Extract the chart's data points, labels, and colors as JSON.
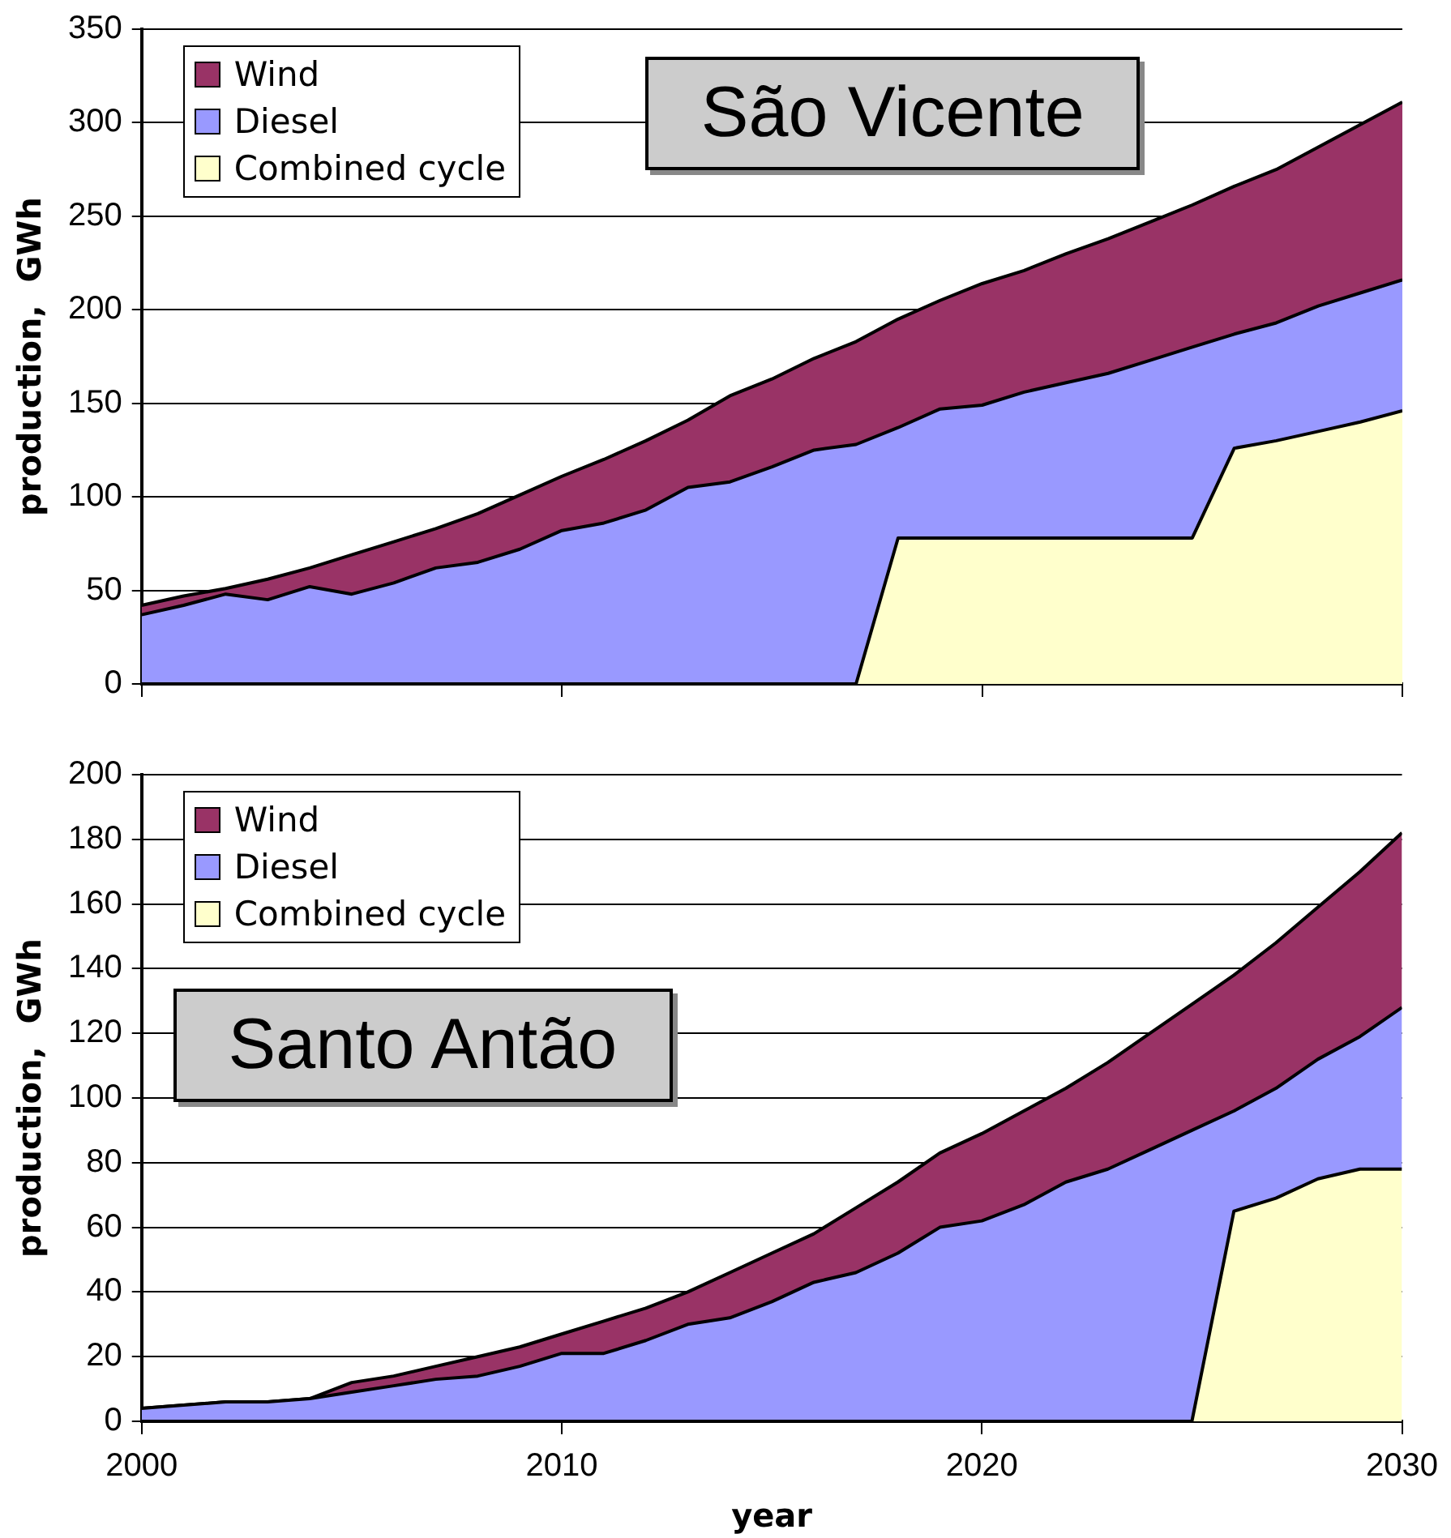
{
  "chart_data": [
    {
      "type": "area",
      "stacked": true,
      "ylabel": "production,  GWh",
      "annotations": [
        "São Vicente"
      ],
      "x": [
        2000,
        2001,
        2002,
        2003,
        2004,
        2005,
        2006,
        2007,
        2008,
        2009,
        2010,
        2011,
        2012,
        2013,
        2014,
        2015,
        2016,
        2017,
        2018,
        2019,
        2020,
        2021,
        2022,
        2023,
        2024,
        2025,
        2026,
        2027,
        2028,
        2029,
        2030
      ],
      "series": [
        {
          "name": "Combined cycle",
          "color": "#ffffcc",
          "values": [
            0,
            0,
            0,
            0,
            0,
            0,
            0,
            0,
            0,
            0,
            0,
            0,
            0,
            0,
            0,
            0,
            0,
            0,
            78,
            78,
            78,
            78,
            78,
            78,
            78,
            78,
            126,
            130,
            135,
            140,
            146
          ]
        },
        {
          "name": "Diesel",
          "color": "#9999ff",
          "values": [
            37,
            42,
            48,
            45,
            52,
            48,
            54,
            62,
            65,
            72,
            82,
            86,
            93,
            105,
            108,
            116,
            125,
            128,
            59,
            69,
            71,
            78,
            83,
            88,
            95,
            102,
            61,
            63,
            67,
            69,
            70
          ]
        },
        {
          "name": "Wind",
          "color": "#993366",
          "values": [
            5,
            5,
            3,
            11,
            10,
            21,
            22,
            21,
            26,
            29,
            29,
            34,
            37,
            36,
            46,
            47,
            49,
            55,
            58,
            58,
            65,
            65,
            69,
            72,
            74,
            76,
            79,
            82,
            85,
            90,
            95
          ]
        }
      ],
      "xlim": [
        2000,
        2030
      ],
      "xticks": [
        2000,
        2010,
        2020,
        2030
      ],
      "ylim": [
        0,
        350
      ],
      "yticks": [
        0,
        50,
        100,
        150,
        200,
        250,
        300,
        350
      ],
      "tick_labels": "y",
      "grid": "y",
      "legend": "top left",
      "marker": "none"
    },
    {
      "type": "area",
      "stacked": true,
      "xlabel": "year",
      "ylabel": "production,  GWh",
      "annotations": [
        "Santo Antão"
      ],
      "x": [
        2000,
        2001,
        2002,
        2003,
        2004,
        2005,
        2006,
        2007,
        2008,
        2009,
        2010,
        2011,
        2012,
        2013,
        2014,
        2015,
        2016,
        2017,
        2018,
        2019,
        2020,
        2021,
        2022,
        2023,
        2024,
        2025,
        2026,
        2027,
        2028,
        2029,
        2030
      ],
      "series": [
        {
          "name": "Combined cycle",
          "color": "#ffffcc",
          "values": [
            0,
            0,
            0,
            0,
            0,
            0,
            0,
            0,
            0,
            0,
            0,
            0,
            0,
            0,
            0,
            0,
            0,
            0,
            0,
            0,
            0,
            0,
            0,
            0,
            0,
            0,
            65,
            69,
            75,
            78,
            78
          ]
        },
        {
          "name": "Diesel",
          "color": "#9999ff",
          "values": [
            4,
            5,
            6,
            6,
            7,
            9,
            11,
            13,
            14,
            17,
            21,
            21,
            25,
            30,
            32,
            37,
            43,
            46,
            52,
            60,
            62,
            67,
            74,
            78,
            84,
            90,
            31,
            34,
            37,
            41,
            50
          ]
        },
        {
          "name": "Wind",
          "color": "#993366",
          "values": [
            0,
            0,
            0,
            0,
            0,
            3,
            3,
            4,
            6,
            6,
            6,
            10,
            10,
            10,
            14,
            15,
            15,
            20,
            22,
            23,
            27,
            29,
            29,
            33,
            36,
            39,
            42,
            45,
            47,
            51,
            54
          ]
        }
      ],
      "xlim": [
        2000,
        2030
      ],
      "xticks": [
        2000,
        2010,
        2020,
        2030
      ],
      "ylim": [
        0,
        200
      ],
      "yticks": [
        0,
        20,
        40,
        60,
        80,
        100,
        120,
        140,
        160,
        180,
        200
      ],
      "grid": "y",
      "legend": "top left",
      "marker": "none"
    }
  ]
}
